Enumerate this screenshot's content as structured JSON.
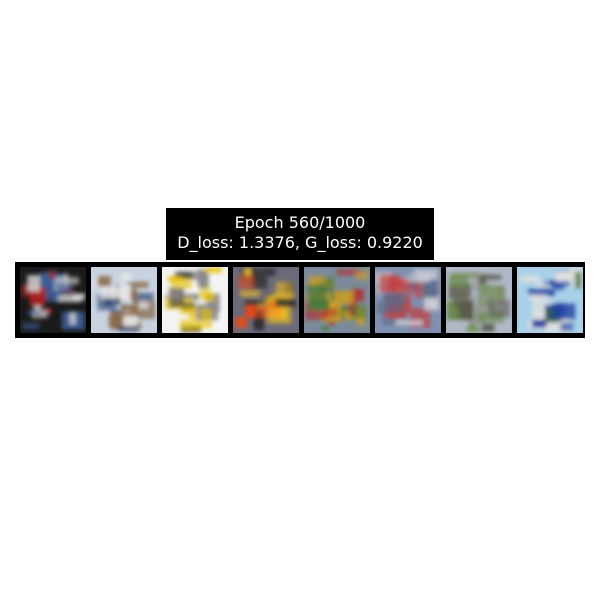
{
  "title": {
    "line1": "Epoch 560/1000",
    "line2": "D_loss: 1.3376, G_loss: 0.9220"
  },
  "samples": [
    {
      "label": "generated-sample-1",
      "palette": [
        "#1a1a1a",
        "#d8d8d8",
        "#b22222",
        "#3a5f9a"
      ]
    },
    {
      "label": "generated-sample-2",
      "palette": [
        "#c9d3e0",
        "#e8e8e8",
        "#1f3b6a",
        "#8a6a4a"
      ]
    },
    {
      "label": "generated-sample-3",
      "palette": [
        "#f4f4f4",
        "#3a3a3a",
        "#e6c200",
        "#8a8a8a"
      ]
    },
    {
      "label": "generated-sample-4",
      "palette": [
        "#6a6a7a",
        "#e84a1a",
        "#f0c020",
        "#2a2a2a"
      ]
    },
    {
      "label": "generated-sample-5",
      "palette": [
        "#7a8a9a",
        "#b03030",
        "#4a7a3a",
        "#d0a020"
      ]
    },
    {
      "label": "generated-sample-6",
      "palette": [
        "#8090b0",
        "#5a6a8a",
        "#c04040",
        "#d0d0d8"
      ]
    },
    {
      "label": "generated-sample-7",
      "palette": [
        "#b0b8c8",
        "#5a5a4a",
        "#6a8a4a",
        "#9a9a9a"
      ]
    },
    {
      "label": "generated-sample-8",
      "palette": [
        "#a8d0e8",
        "#e0e0e0",
        "#3a6a2a",
        "#2040a0"
      ]
    }
  ]
}
